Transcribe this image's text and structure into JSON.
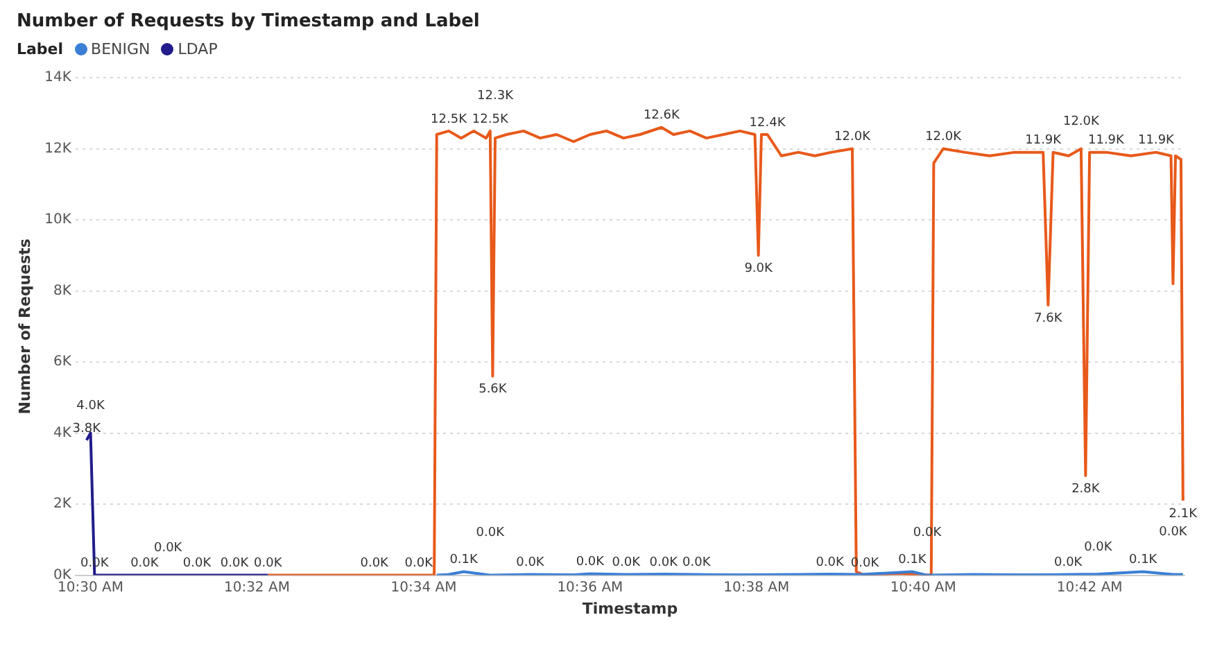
{
  "chart_data": {
    "type": "line",
    "title": "Number of Requests by Timestamp and Label",
    "xlabel": "Timestamp",
    "ylabel": "Number of Requests",
    "legend_title": "Label",
    "legend": "top left",
    "grid": "y",
    "xlim": [
      10.497,
      10.719
    ],
    "xticks": [
      {
        "value": 10.5,
        "label": "10:30 AM"
      },
      {
        "value": 10.5333,
        "label": "10:32 AM"
      },
      {
        "value": 10.5667,
        "label": "10:34 AM"
      },
      {
        "value": 10.6,
        "label": "10:36 AM"
      },
      {
        "value": 10.6333,
        "label": "10:38 AM"
      },
      {
        "value": 10.6667,
        "label": "10:40 AM"
      },
      {
        "value": 10.7,
        "label": "10:42 AM"
      }
    ],
    "ylim": [
      0,
      14
    ],
    "yticks": [
      {
        "value": 0,
        "label": "0K"
      },
      {
        "value": 2,
        "label": "2K"
      },
      {
        "value": 4,
        "label": "4K"
      },
      {
        "value": 6,
        "label": "6K"
      },
      {
        "value": 8,
        "label": "8K"
      },
      {
        "value": 10,
        "label": "10K"
      },
      {
        "value": 12,
        "label": "12K"
      },
      {
        "value": 14,
        "label": "14K"
      }
    ],
    "series": [
      {
        "name": "BENIGN",
        "color": "#3a7fd5",
        "x": [
          10.5693,
          10.5717,
          10.5747,
          10.58,
          10.588,
          10.5967,
          10.6,
          10.6072,
          10.6147,
          10.6213,
          10.63,
          10.6417,
          10.648,
          10.6542,
          10.6645,
          10.6675,
          10.6767,
          10.6867,
          10.6957,
          10.7017,
          10.7107,
          10.7167,
          10.7187
        ],
        "values": [
          0,
          0.02,
          0.1,
          0,
          0.02,
          0.01,
          0.04,
          0.02,
          0.03,
          0.02,
          0.01,
          0.02,
          0.03,
          0.02,
          0.1,
          0,
          0.02,
          0.01,
          0.02,
          0.03,
          0.1,
          0.02,
          0.02
        ],
        "value_labels": [
          null,
          null,
          "0.1K",
          "0.0K",
          "0.0K",
          null,
          "0.0K",
          "0.0K",
          "0.0K",
          "0.0K",
          null,
          null,
          "0.0K",
          null,
          "0.1K",
          "0.0K",
          null,
          null,
          "0.0K",
          "0.0K",
          "0.1K",
          "0.0K",
          null
        ]
      },
      {
        "name": "LDAP",
        "color": "#221c8c",
        "x": [
          10.4992,
          10.5,
          10.5008,
          10.5108,
          10.5155,
          10.5213,
          10.5288,
          10.5355
        ],
        "values": [
          3.8,
          4.0,
          0,
          0,
          0,
          0,
          0,
          0
        ],
        "value_labels": [
          "3.8K",
          "4.0K",
          "0.0K",
          "0.0K",
          "0.0K",
          "0.0K",
          "0.0K",
          "0.0K"
        ]
      },
      {
        "color": "#e8591a",
        "x": [
          10.5355,
          10.5568,
          10.5657,
          10.5688,
          10.5693,
          10.5717,
          10.5742,
          10.5767,
          10.5792,
          10.58,
          10.5805,
          10.581,
          10.5833,
          10.5867,
          10.59,
          10.5933,
          10.5967,
          10.6,
          10.6033,
          10.6067,
          10.61,
          10.6143,
          10.6167,
          10.62,
          10.6233,
          10.6267,
          10.63,
          10.633,
          10.6337,
          10.6343,
          10.6355,
          10.6383,
          10.6417,
          10.645,
          10.6483,
          10.6525,
          10.6533,
          10.655,
          10.6617,
          10.6683,
          10.6688,
          10.6707,
          10.675,
          10.68,
          10.685,
          10.6907,
          10.6917,
          10.6927,
          10.6958,
          10.6983,
          10.6992,
          10.7,
          10.7033,
          10.7083,
          10.7133,
          10.7163,
          10.7167,
          10.7172,
          10.7183,
          10.7187
        ],
        "values": [
          0,
          0,
          0,
          0,
          12.4,
          12.5,
          12.3,
          12.5,
          12.3,
          12.5,
          5.6,
          12.3,
          12.4,
          12.5,
          12.3,
          12.4,
          12.2,
          12.4,
          12.5,
          12.3,
          12.4,
          12.6,
          12.4,
          12.5,
          12.3,
          12.4,
          12.5,
          12.4,
          9.0,
          12.4,
          12.4,
          11.8,
          11.9,
          11.8,
          11.9,
          12.0,
          0.1,
          0,
          0.05,
          0,
          11.6,
          12.0,
          11.9,
          11.8,
          11.9,
          11.9,
          7.6,
          11.9,
          11.8,
          12.0,
          2.8,
          11.9,
          11.9,
          11.8,
          11.9,
          11.8,
          8.2,
          11.8,
          11.7,
          2.1
        ],
        "value_labels": [
          null,
          "0.0K",
          "0.0K",
          null,
          null,
          "12.5K",
          null,
          null,
          null,
          "12.5K",
          "5.6K",
          "12.3K",
          null,
          null,
          null,
          null,
          null,
          null,
          null,
          null,
          null,
          "12.6K",
          null,
          null,
          null,
          null,
          null,
          null,
          "9.0K",
          null,
          "12.4K",
          null,
          null,
          null,
          null,
          "12.0K",
          null,
          "0.0K",
          null,
          null,
          null,
          "12.0K",
          null,
          null,
          null,
          "11.9K",
          "7.6K",
          null,
          null,
          "12.0K",
          "2.8K",
          null,
          "11.9K",
          null,
          "11.9K",
          null,
          null,
          null,
          null,
          "2.1K"
        ]
      }
    ]
  }
}
